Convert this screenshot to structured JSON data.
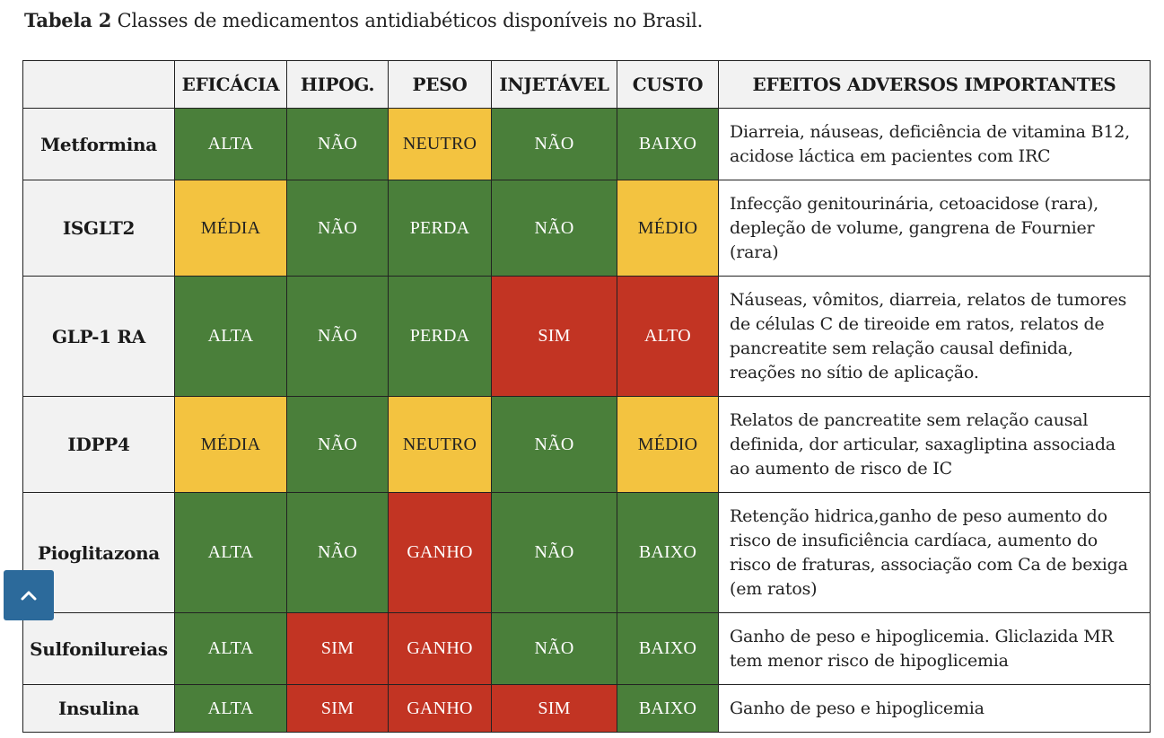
{
  "caption": {
    "label": "Tabela 2",
    "text": " Classes de medicamentos antidiabéticos disponíveis no Brasil."
  },
  "table": {
    "headers": [
      "",
      "EFICÁCIA",
      "HIPOG.",
      "PESO",
      "INJETÁVEL",
      "CUSTO",
      "EFEITOS ADVERSOS IMPORTANTES"
    ],
    "rows": [
      {
        "name": "Metformina",
        "eficacia": "ALTA",
        "hipog": "NÃO",
        "peso": "NEUTRO",
        "injetavel": "NÃO",
        "custo": "BAIXO",
        "adversos": "Diarreia, náuseas, deficiência de vitamina B12, acidose láctica em pacientes com IRC"
      },
      {
        "name": "ISGLT2",
        "eficacia": "MÉDIA",
        "hipog": "NÃO",
        "peso": "PERDA",
        "injetavel": "NÃO",
        "custo": "MÉDIO",
        "adversos": "Infecção genitourinária, cetoacidose (rara), depleção de volume, gangrena de Fournier (rara)"
      },
      {
        "name": "GLP-1 RA",
        "eficacia": "ALTA",
        "hipog": "NÃO",
        "peso": "PERDA",
        "injetavel": "SIM",
        "custo": "ALTO",
        "adversos": "Náuseas, vômitos, diarreia, relatos de tumores de células C de tireoide em ratos, relatos de pancreatite sem relação causal definida, reações no sítio de aplicação."
      },
      {
        "name": "IDPP4",
        "eficacia": "MÉDIA",
        "hipog": "NÃO",
        "peso": "NEUTRO",
        "injetavel": "NÃO",
        "custo": "MÉDIO",
        "adversos": "Relatos de pancreatite sem relação causal definida, dor articular, saxagliptina associada ao aumento de risco de IC"
      },
      {
        "name": "Pioglitazona",
        "eficacia": "ALTA",
        "hipog": "NÃO",
        "peso": "GANHO",
        "injetavel": "NÃO",
        "custo": "BAIXO",
        "adversos": "Retenção hidrica,ganho de peso aumento do risco de insuficiência cardíaca, aumento do risco de fraturas, associação com Ca de bexiga (em ratos)"
      },
      {
        "name": "Sulfonilureias",
        "eficacia": "ALTA",
        "hipog": "SIM",
        "peso": "GANHO",
        "injetavel": "NÃO",
        "custo": "BAIXO",
        "adversos": "Ganho de peso e hipoglicemia. Gliclazida MR tem menor risco de hipoglicemia"
      },
      {
        "name": "Insulina",
        "eficacia": "ALTA",
        "hipog": "SIM",
        "peso": "GANHO",
        "injetavel": "SIM",
        "custo": "BAIXO",
        "adversos": "Ganho de peso e hipoglicemia"
      }
    ]
  },
  "colors": {
    "green": "#4a7f3a",
    "yellow": "#f3c340",
    "red": "#c23423",
    "header_bg": "#f2f2f2",
    "scroll_button": "#2c6a9b"
  },
  "scroll_top_icon": "chevron-up-icon"
}
